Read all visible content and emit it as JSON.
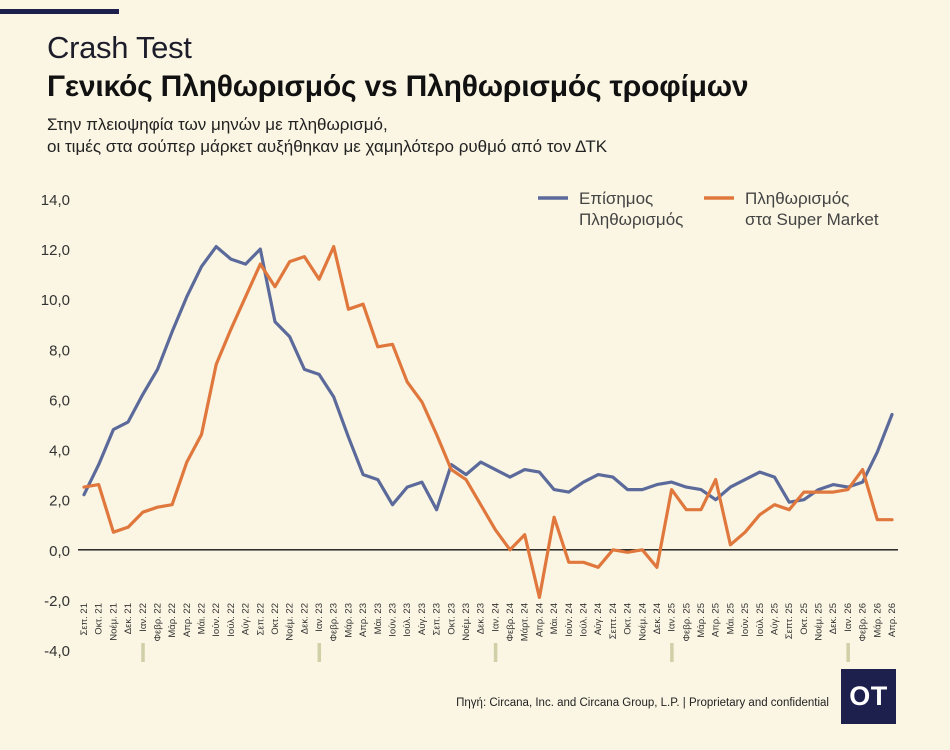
{
  "header": {
    "title": "Crash Test",
    "headline": "Γενικός Πληθωρισμός vs Πληθωρισμός τροφίμων",
    "subtitle_line1": "Στην πλειοψηφία των μηνών με πληθωρισμό,",
    "subtitle_line2": "οι τιμές στα σούπερ μάρκετ αυξήθηκαν με χαμηλότερο ρυθμό από τον ΔΤΚ"
  },
  "footer": {
    "source": "Πηγή: Circana, Inc. and Circana Group, L.P. | Proprietary and confidential",
    "logo_text": "OT"
  },
  "colors": {
    "background": "#faf6e3",
    "series_official": "#5b6a9b",
    "series_supermarket": "#e0783e",
    "axis": "#111111",
    "year_marker": "#cfd0a8"
  },
  "chart_data": {
    "type": "line",
    "ylim": [
      -4.0,
      14.0
    ],
    "yticks": [
      "14,0",
      "12,0",
      "10,0",
      "8,0",
      "6,0",
      "4,0",
      "2,0",
      "0,0",
      "-2,0",
      "-4,0"
    ],
    "ytick_values": [
      14,
      12,
      10,
      8,
      6,
      4,
      2,
      0,
      -2,
      -4
    ],
    "grid": false,
    "legend_position": "top-right",
    "x": [
      "Σεπ. 21",
      "Οκτ. 21",
      "Νοέμ. 21",
      "Δεκ. 21",
      "Ιαν. 22",
      "Φεβρ. 22",
      "Μάρ. 22",
      "Απρ. 22",
      "Μάι. 22",
      "Ιούν. 22",
      "Ιούλ. 22",
      "Αύγ. 22",
      "Σεπ. 22",
      "Οκτ. 22",
      "Νοέμ. 22",
      "Δεκ. 22",
      "Ιαν. 23",
      "Φεβρ. 23",
      "Μάρ. 23",
      "Απρ. 23",
      "Μάι. 23",
      "Ιούν. 23",
      "Ιούλ. 23",
      "Αύγ. 23",
      "Σεπ. 23",
      "Οκτ. 23",
      "Νοέμ. 23",
      "Δεκ. 23",
      "Ιαν. 24",
      "Φεβρ. 24",
      "Μάρτ. 24",
      "Απρ. 24",
      "Μάι. 24",
      "Ιούν. 24",
      "Ιούλ. 24",
      "Αύγ. 24",
      "Σεπτ. 24",
      "Οκτ. 24",
      "Νοέμ. 24",
      "Δεκ. 24",
      "Ιαν. 25",
      "Φεβρ. 25",
      "Μάρ. 25",
      "Απρ. 25",
      "Μάι. 25",
      "Ιούν. 25",
      "Ιούλ. 25",
      "Αύγ. 25",
      "Σεπτ. 25",
      "Οκτ. 25",
      "Νοέμ. 25",
      "Δεκ. 25",
      "Ιαν. 26",
      "Φεβρ. 26",
      "Μάρ. 26",
      "Απρ. 26"
    ],
    "year_marker_labels": [
      "Ιαν. 22",
      "Ιαν. 23",
      "Ιαν. 24",
      "Ιαν. 25",
      "Ιαν. 26"
    ],
    "series": [
      {
        "name": "Επίσημος Πληθωρισμός",
        "legend_line1": "Επίσημος",
        "legend_line2": "Πληθωρισμός",
        "values": [
          2.2,
          3.4,
          4.8,
          5.1,
          6.2,
          7.2,
          8.7,
          10.1,
          11.3,
          12.1,
          11.6,
          11.4,
          12.0,
          9.1,
          8.5,
          7.2,
          7.0,
          6.1,
          4.5,
          3.0,
          2.8,
          1.8,
          2.5,
          2.7,
          1.6,
          3.4,
          3.0,
          3.5,
          3.2,
          2.9,
          3.2,
          3.1,
          2.4,
          2.3,
          2.7,
          3.0,
          2.9,
          2.4,
          2.4,
          2.6,
          2.7,
          2.5,
          2.4,
          2.0,
          2.5,
          2.8,
          3.1,
          2.9,
          1.9,
          2.0,
          2.4,
          2.6,
          2.5,
          2.7,
          3.9,
          5.4
        ]
      },
      {
        "name": "Πληθωρισμός στα Super Market",
        "legend_line1": "Πληθωρισμός",
        "legend_line2": "στα Super Market",
        "values": [
          2.5,
          2.6,
          0.7,
          0.9,
          1.5,
          1.7,
          1.8,
          3.5,
          4.6,
          7.4,
          8.8,
          10.1,
          11.4,
          10.5,
          11.5,
          11.7,
          10.8,
          12.1,
          9.6,
          9.8,
          8.1,
          8.2,
          6.7,
          5.9,
          4.6,
          3.2,
          2.8,
          1.8,
          0.8,
          0.0,
          0.6,
          -1.9,
          1.3,
          -0.5,
          -0.5,
          -0.7,
          0.0,
          -0.1,
          0.0,
          -0.7,
          2.4,
          1.6,
          1.6,
          2.8,
          0.2,
          0.7,
          1.4,
          1.8,
          1.6,
          2.3,
          2.3,
          2.3,
          2.4,
          3.2,
          1.2,
          1.2
        ]
      }
    ]
  }
}
